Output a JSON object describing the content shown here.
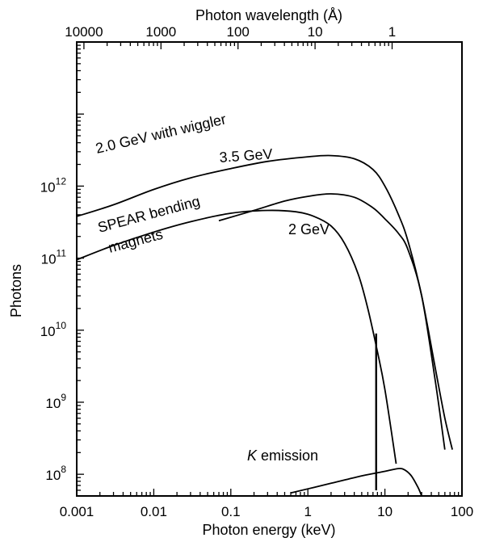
{
  "chart_data": {
    "type": "line",
    "title": "",
    "xlabel": "Photon energy (keV)",
    "ylabel": "Photons",
    "top_axis_label": "Photon wavelength (Å)",
    "x_scale": "log",
    "y_scale": "log",
    "xlim": [
      0.001,
      100
    ],
    "ylim": [
      50000000,
      100000000000000
    ],
    "grid": false,
    "x_ticks": [
      {
        "value": 0.001,
        "label": "0.001"
      },
      {
        "value": 0.01,
        "label": "0.01"
      },
      {
        "value": 0.1,
        "label": "0.1"
      },
      {
        "value": 1,
        "label": "1"
      },
      {
        "value": 10,
        "label": "10"
      },
      {
        "value": 100,
        "label": "100"
      }
    ],
    "y_ticks": [
      {
        "value": 100000000,
        "base": "10",
        "exp": "8"
      },
      {
        "value": 1000000000,
        "base": "10",
        "exp": "9"
      },
      {
        "value": 10000000000,
        "base": "10",
        "exp": "10"
      },
      {
        "value": 100000000000,
        "base": "10",
        "exp": "11"
      },
      {
        "value": 1000000000000,
        "base": "10",
        "exp": "12"
      }
    ],
    "top_ticks": [
      {
        "energy_keV": 0.00124,
        "label": "10000"
      },
      {
        "energy_keV": 0.0124,
        "label": "1000"
      },
      {
        "energy_keV": 0.124,
        "label": "100"
      },
      {
        "energy_keV": 1.24,
        "label": "10"
      },
      {
        "energy_keV": 12.4,
        "label": "1"
      }
    ],
    "series": [
      {
        "name": "2.0 GeV with wiggler",
        "x": [
          0.001,
          0.003,
          0.01,
          0.03,
          0.1,
          0.3,
          1,
          2,
          4,
          7,
          10,
          15,
          20,
          30,
          45,
          60,
          75
        ],
        "y": [
          380000000000,
          550000000000,
          900000000000,
          1300000000000,
          1750000000000,
          2200000000000,
          2550000000000,
          2650000000000,
          2400000000000,
          1700000000000,
          1000000000000,
          400000000000,
          170000000000,
          30000000000,
          3000000000,
          600000000,
          220000000
        ]
      },
      {
        "name": "3.5 GeV",
        "x": [
          0.07,
          0.2,
          0.5,
          1,
          2,
          4,
          7,
          10,
          15,
          20,
          30,
          45,
          60
        ],
        "y": [
          330000000000,
          460000000000,
          620000000000,
          720000000000,
          780000000000,
          700000000000,
          500000000000,
          350000000000,
          220000000000,
          130000000000,
          30000000000,
          2000000000,
          220000000
        ]
      },
      {
        "name": "SPEAR bending magnets",
        "x": [
          0.001,
          0.003,
          0.01,
          0.03,
          0.1,
          0.3,
          0.7,
          1.2,
          2,
          3,
          4.5,
          6,
          8,
          10,
          14
        ],
        "y": [
          95000000000,
          150000000000,
          230000000000,
          320000000000,
          420000000000,
          460000000000,
          440000000000,
          380000000000,
          280000000000,
          160000000000,
          60000000000,
          20000000000,
          5000000000,
          1500000000,
          140000000
        ]
      },
      {
        "name": "K emission",
        "x": [
          0.6,
          2,
          5,
          10,
          15,
          18,
          22,
          27,
          30
        ],
        "y": [
          55000000,
          75000000,
          95000000,
          110000000,
          120000000,
          115000000,
          95000000,
          65000000,
          50000000
        ]
      }
    ],
    "drop_line": {
      "x": 7.7,
      "y_top": 9000000000,
      "y_bottom": 60000000
    },
    "annotations": [
      {
        "text": "2.0 GeV with wiggler",
        "series": 0
      },
      {
        "text": "3.5 GeV",
        "series": 1
      },
      {
        "line1": "SPEAR bending",
        "line2": "magnets",
        "series": 2
      },
      {
        "text": "2 GeV",
        "series": 2
      },
      {
        "italic": "K",
        "rest": " emission",
        "series": 3
      }
    ]
  }
}
